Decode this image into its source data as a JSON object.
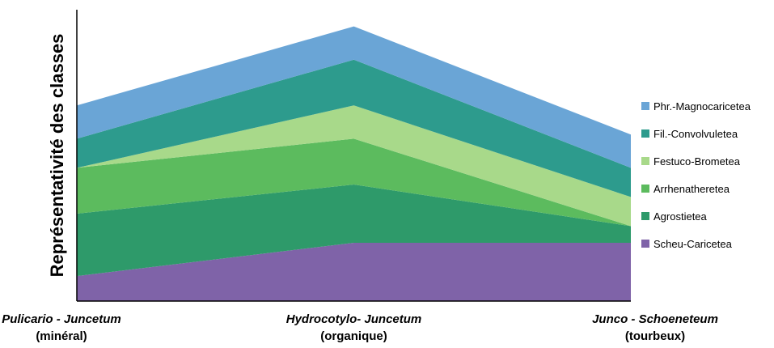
{
  "chart_data": {
    "type": "area",
    "stacked": true,
    "title": "",
    "ylabel": "Représentativité des classes",
    "xlabel": "",
    "grid": false,
    "legend_position": "right",
    "ylim": [
      0,
      7
    ],
    "categories": [
      {
        "main": "Pulicario - Juncetum",
        "sub": "(minéral)"
      },
      {
        "main": "Hydrocotylo- Juncetum",
        "sub": "(organique)"
      },
      {
        "main": "Junco - Schoeneteum",
        "sub": "(tourbeux)"
      }
    ],
    "series": [
      {
        "name": "Scheu-Caricetea",
        "color": "#7f63a8",
        "values": [
          0.6,
          1.4,
          1.4
        ]
      },
      {
        "name": "Agrostietea",
        "color": "#2e9a6a",
        "values": [
          1.5,
          1.4,
          0.4
        ]
      },
      {
        "name": "Arrhenatheretea",
        "color": "#5cbb5e",
        "values": [
          1.1,
          1.1,
          0.0
        ]
      },
      {
        "name": "Festuco-Brometea",
        "color": "#a8d98a",
        "values": [
          0.0,
          0.8,
          0.7
        ]
      },
      {
        "name": "Fil.-Convolvuletea",
        "color": "#2d9b8d",
        "values": [
          0.7,
          1.1,
          0.7
        ]
      },
      {
        "name": "Phr.-Magnocaricetea",
        "color": "#6aa5d6",
        "values": [
          0.8,
          0.8,
          0.8
        ]
      }
    ]
  }
}
